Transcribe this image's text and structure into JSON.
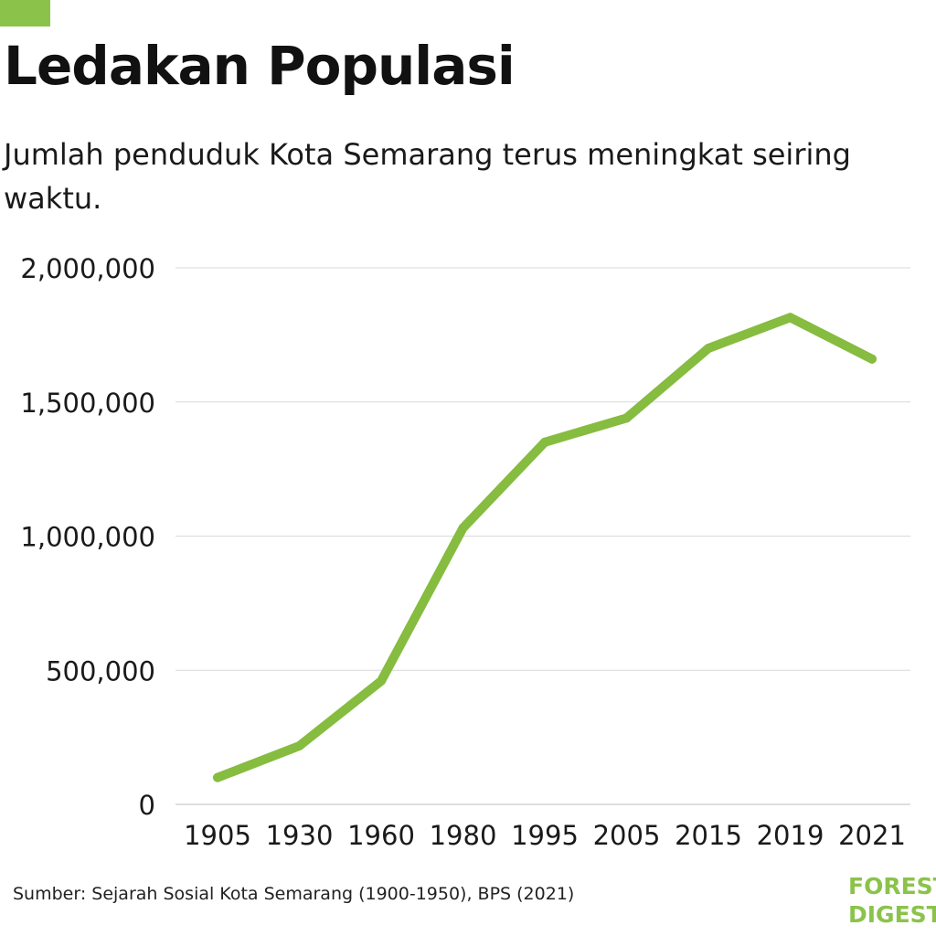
{
  "header": {
    "title": "Ledakan Populasi",
    "subtitle": "Jumlah penduduk Kota Semarang terus meningkat seiring waktu."
  },
  "colors": {
    "accent": "#8bc34a",
    "line": "#86bc3f",
    "grid": "#d9d9d9",
    "text": "#1a1a1a"
  },
  "footer": {
    "source": "Sumber: Sejarah Sosial Kota Semarang (1900-1950), BPS (2021)",
    "logo_line1": "FOREST",
    "logo_line2": "DIGEST"
  },
  "chart_data": {
    "type": "line",
    "categories": [
      "1905",
      "1930",
      "1960",
      "1980",
      "1995",
      "2005",
      "2015",
      "2019",
      "2021"
    ],
    "series": [
      {
        "values": [
          100000,
          218000,
          460000,
          1030000,
          1350000,
          1440000,
          1700000,
          1815000,
          1660000
        ]
      }
    ],
    "ylim": [
      0,
      2000000
    ],
    "yticks": [
      0,
      500000,
      1000000,
      1500000,
      2000000
    ],
    "ytick_labels": [
      "0",
      "500,000",
      "1,000,000",
      "1,500,000",
      "2,000,000"
    ],
    "grid": true,
    "legend": "none"
  }
}
